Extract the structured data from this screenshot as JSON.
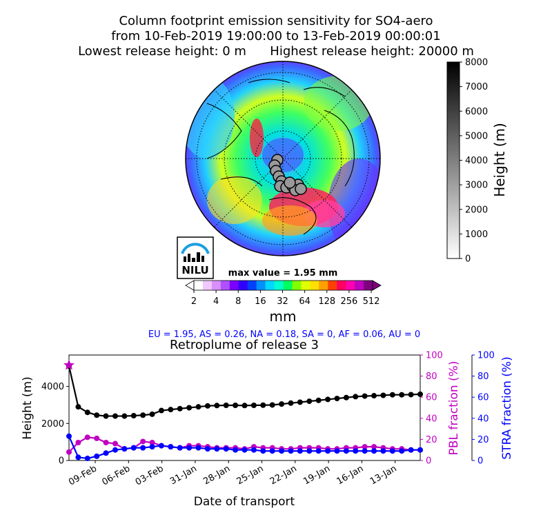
{
  "header": {
    "title_line1": "Column footprint emission sensitivity for SO4-aero",
    "title_line2": "from 10-Feb-2019 19:00:00 to 13-Feb-2019 00:00:01",
    "title_line3": "Lowest release height: 0 m      Highest release height: 20000 m"
  },
  "logo": {
    "text": "NILU"
  },
  "map": {
    "max_value_label": "max value = 1.95 mm"
  },
  "colorbar_mm": {
    "label": "mm",
    "ticks": [
      "2",
      "4",
      "8",
      "16",
      "32",
      "64",
      "128",
      "256",
      "512"
    ],
    "colors": [
      "#ffffff",
      "#f0c8ff",
      "#d890ff",
      "#b050ff",
      "#7a00ff",
      "#3000ff",
      "#0040ff",
      "#0090ff",
      "#00d8ff",
      "#00ffd0",
      "#00ff60",
      "#80ff00",
      "#e0ff00",
      "#ffe000",
      "#ffa000",
      "#ff4000",
      "#ff0060",
      "#ff00b0",
      "#c000c0",
      "#800080"
    ]
  },
  "colorbar_height": {
    "label": "Height (m)",
    "ticks": [
      "0",
      "1000",
      "2000",
      "3000",
      "4000",
      "5000",
      "6000",
      "7000",
      "8000"
    ]
  },
  "region_summary": "EU = 1.95,  AS = 0.26,  NA = 0.18,  SA = 0,  AF = 0.06,  AU = 0",
  "chart_data": {
    "type": "line",
    "title": "Retroplume of release 3",
    "xlabel": "Date of transport",
    "ylabel": "Height (m)",
    "ylabel_pbl": "PBL fraction (%)",
    "ylabel_stra": "STRA fraction (%)",
    "x_tick_labels": [
      "09-Feb",
      "06-Feb",
      "03-Feb",
      "31-Jan",
      "28-Jan",
      "25-Jan",
      "22-Jan",
      "19-Jan",
      "16-Jan",
      "13-Jan"
    ],
    "y_ticks": [
      "0",
      "2000",
      "4000"
    ],
    "y_right_ticks": [
      "0",
      "20",
      "40",
      "60",
      "80",
      "100"
    ],
    "ylim": [
      0,
      5700
    ],
    "ylim_fraction": [
      0,
      100
    ],
    "colors": {
      "height": "#000000",
      "pbl": "#c000c0",
      "stra": "#0000ff"
    },
    "series": [
      {
        "name": "height",
        "axis": "left",
        "values": [
          5100,
          2900,
          2600,
          2450,
          2400,
          2400,
          2400,
          2420,
          2450,
          2500,
          2700,
          2750,
          2800,
          2850,
          2900,
          2950,
          2970,
          2980,
          2980,
          2970,
          2980,
          2990,
          3000,
          3050,
          3100,
          3150,
          3200,
          3250,
          3300,
          3350,
          3400,
          3450,
          3480,
          3500,
          3520,
          3550,
          3550,
          3560,
          3580
        ]
      },
      {
        "name": "pbl",
        "axis": "right",
        "values": [
          8,
          17,
          22,
          21,
          17,
          16,
          11,
          12,
          18,
          17,
          14,
          13,
          12,
          14,
          14,
          13,
          12,
          12,
          12,
          11,
          13,
          12,
          12,
          11,
          11,
          12,
          12,
          12,
          11,
          11,
          12,
          12,
          13,
          13,
          12,
          11,
          11,
          10,
          10
        ]
      },
      {
        "name": "stra",
        "axis": "right",
        "values": [
          23,
          3,
          2,
          4,
          7,
          10,
          11,
          12,
          12,
          13,
          14,
          13,
          12,
          12,
          12,
          11,
          11,
          11,
          10,
          10,
          10,
          9,
          9,
          9,
          9,
          9,
          9,
          9,
          9,
          9,
          9,
          9,
          9,
          9,
          9,
          9,
          9,
          10,
          10
        ]
      }
    ],
    "start_marker_value": 5150
  }
}
